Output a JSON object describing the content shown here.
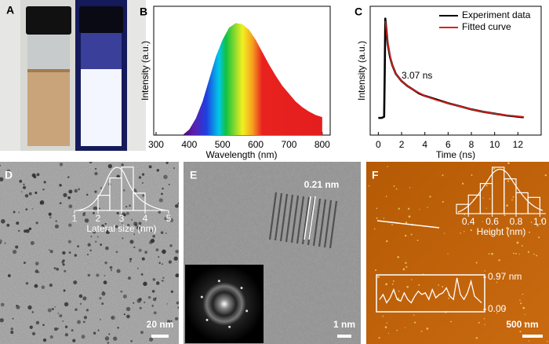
{
  "panel_labels": [
    "A",
    "B",
    "C",
    "D",
    "E",
    "F"
  ],
  "chart_data": [
    {
      "type": "area",
      "x_label": "Wavelength (nm)",
      "y_label": "Intensity (a.u.)",
      "x": [
        380,
        400,
        420,
        440,
        460,
        480,
        500,
        520,
        540,
        560,
        580,
        600,
        620,
        640,
        660,
        680,
        700,
        720,
        740,
        760,
        780,
        800
      ],
      "values": [
        0,
        0.05,
        0.15,
        0.3,
        0.5,
        0.7,
        0.85,
        0.96,
        1.0,
        0.99,
        0.94,
        0.85,
        0.74,
        0.63,
        0.53,
        0.44,
        0.37,
        0.3,
        0.25,
        0.21,
        0.18,
        0.16
      ],
      "xlim": [
        293,
        824
      ],
      "ylim": [
        0,
        1.15
      ],
      "xticks": [
        300,
        400,
        500,
        600,
        700,
        800
      ]
    },
    {
      "type": "line",
      "x_label": "Time (ns)",
      "y_label": "Intensity (a.u.)",
      "annotation": "3.07 ns",
      "x": [
        0,
        0.3,
        0.5,
        0.55,
        0.6,
        0.7,
        0.8,
        1,
        1.2,
        1.5,
        2,
        2.5,
        3,
        3.5,
        4,
        5,
        6,
        7,
        8,
        9,
        10,
        11,
        12,
        12.5
      ],
      "series": [
        {
          "name": "Experiment data",
          "color": "#000000",
          "values": [
            0.14,
            0.14,
            0.15,
            0.5,
            0.95,
            0.85,
            0.75,
            0.64,
            0.57,
            0.5,
            0.44,
            0.4,
            0.37,
            0.34,
            0.32,
            0.29,
            0.26,
            0.235,
            0.21,
            0.19,
            0.175,
            0.16,
            0.15,
            0.145
          ]
        },
        {
          "name": "Fitted curve",
          "color": "#e0201b",
          "values": [
            null,
            null,
            null,
            null,
            0.93,
            0.84,
            0.76,
            0.65,
            0.57,
            0.5,
            0.44,
            0.4,
            0.37,
            0.345,
            0.32,
            0.285,
            0.26,
            0.235,
            0.21,
            0.19,
            0.175,
            0.162,
            0.152,
            0.148
          ]
        }
      ],
      "xlim": [
        -0.7,
        14
      ],
      "ylim": [
        0,
        1.05
      ],
      "xticks": [
        0,
        2,
        4,
        6,
        8,
        10,
        12
      ],
      "legend": "upper right"
    },
    {
      "type": "histogram",
      "x_label": "Lateral size (nm)",
      "bins": [
        2,
        2.5,
        3,
        3.5,
        4
      ],
      "values": [
        0.35,
        0.75,
        1,
        0.4
      ],
      "xlim": [
        1,
        5
      ],
      "ylim": [
        0,
        1.05
      ],
      "xticks": [
        1,
        2,
        3,
        4,
        5
      ],
      "color": "#ffffff"
    },
    {
      "type": "histogram",
      "x_label": "Height (nm)",
      "bins": [
        0.3,
        0.4,
        0.5,
        0.6,
        0.7,
        0.8,
        0.9,
        1.0
      ],
      "values": [
        0.2,
        0.4,
        0.65,
        1,
        0.75,
        0.45,
        0.35
      ],
      "xlim": [
        0.3,
        1.05
      ],
      "ylim": [
        0,
        1.05
      ],
      "xticks": [
        0.4,
        0.6,
        0.8,
        {
          "value": 1,
          "label": "1.0"
        }
      ],
      "color": "#ffffff"
    },
    {
      "type": "profile",
      "values": [
        0.3,
        0.45,
        0.2,
        0.35,
        0.6,
        0.3,
        0.25,
        0.5,
        0.3,
        0.2,
        0.4,
        0.55,
        0.45,
        0.5,
        0.3,
        0.6,
        0.35,
        0.45,
        0.5,
        0.65,
        0.4,
        0.3,
        0.95,
        0.45,
        0.3,
        0.5,
        0.85,
        0.4,
        0.3,
        0.2
      ],
      "ylim": [
        0,
        0.97
      ],
      "yticks": [
        {
          "value": 0.97,
          "label": "0.97 nm"
        },
        {
          "value": 0,
          "label": "0.00"
        }
      ],
      "color": "#ffffff"
    }
  ],
  "annotations": {
    "lattice_spacing": "0.21 nm"
  },
  "scale_bars": [
    "20 nm",
    "1 nm",
    "500 nm"
  ]
}
